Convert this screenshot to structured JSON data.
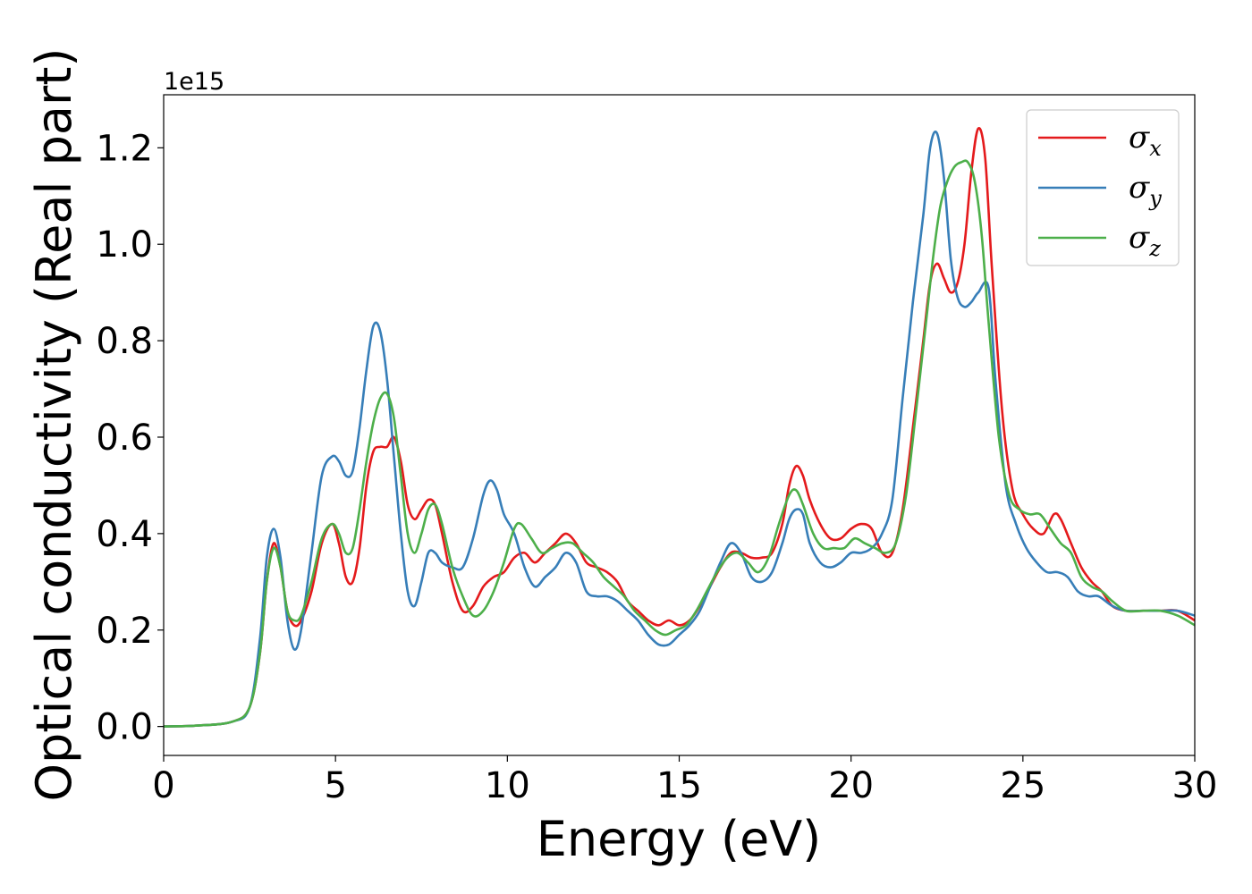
{
  "chart_data": {
    "type": "line",
    "xlabel": "Energy (eV)",
    "ylabel": "Optical conductivity (Real part)",
    "offset_label": "1e15",
    "xlim": [
      0,
      30
    ],
    "ylim": [
      -0.06,
      1.31
    ],
    "x_ticks": [
      0,
      5,
      10,
      15,
      20,
      25,
      30
    ],
    "x_tick_labels": [
      "0",
      "5",
      "10",
      "15",
      "20",
      "25",
      "30"
    ],
    "y_ticks": [
      0.0,
      0.2,
      0.4,
      0.6,
      0.8,
      1.0,
      1.2
    ],
    "y_tick_labels": [
      "0.0",
      "0.2",
      "0.4",
      "0.6",
      "0.8",
      "1.0",
      "1.2"
    ],
    "grid": false,
    "legend_position": "top-right",
    "series": [
      {
        "name": "σx",
        "symbol": "σ",
        "subscript": "x",
        "color": "#e41a1c",
        "points": [
          [
            0,
            0
          ],
          [
            1,
            0.002
          ],
          [
            2,
            0.01
          ],
          [
            2.5,
            0.04
          ],
          [
            2.8,
            0.15
          ],
          [
            3.0,
            0.3
          ],
          [
            3.2,
            0.38
          ],
          [
            3.4,
            0.33
          ],
          [
            3.6,
            0.24
          ],
          [
            3.8,
            0.21
          ],
          [
            4.0,
            0.22
          ],
          [
            4.3,
            0.28
          ],
          [
            4.6,
            0.38
          ],
          [
            4.9,
            0.42
          ],
          [
            5.1,
            0.38
          ],
          [
            5.3,
            0.31
          ],
          [
            5.5,
            0.3
          ],
          [
            5.7,
            0.37
          ],
          [
            5.9,
            0.5
          ],
          [
            6.1,
            0.57
          ],
          [
            6.3,
            0.58
          ],
          [
            6.5,
            0.58
          ],
          [
            6.7,
            0.6
          ],
          [
            6.9,
            0.55
          ],
          [
            7.1,
            0.46
          ],
          [
            7.3,
            0.43
          ],
          [
            7.5,
            0.45
          ],
          [
            7.7,
            0.47
          ],
          [
            7.9,
            0.46
          ],
          [
            8.1,
            0.4
          ],
          [
            8.4,
            0.3
          ],
          [
            8.7,
            0.24
          ],
          [
            9.0,
            0.25
          ],
          [
            9.3,
            0.29
          ],
          [
            9.6,
            0.31
          ],
          [
            9.9,
            0.32
          ],
          [
            10.2,
            0.35
          ],
          [
            10.5,
            0.36
          ],
          [
            10.8,
            0.34
          ],
          [
            11.1,
            0.36
          ],
          [
            11.4,
            0.38
          ],
          [
            11.7,
            0.4
          ],
          [
            12.0,
            0.38
          ],
          [
            12.3,
            0.34
          ],
          [
            12.6,
            0.33
          ],
          [
            12.9,
            0.32
          ],
          [
            13.2,
            0.3
          ],
          [
            13.5,
            0.26
          ],
          [
            13.8,
            0.24
          ],
          [
            14.1,
            0.22
          ],
          [
            14.4,
            0.21
          ],
          [
            14.7,
            0.22
          ],
          [
            15.0,
            0.21
          ],
          [
            15.3,
            0.22
          ],
          [
            15.6,
            0.25
          ],
          [
            15.9,
            0.29
          ],
          [
            16.2,
            0.33
          ],
          [
            16.5,
            0.36
          ],
          [
            16.8,
            0.36
          ],
          [
            17.1,
            0.35
          ],
          [
            17.4,
            0.35
          ],
          [
            17.7,
            0.36
          ],
          [
            18.0,
            0.42
          ],
          [
            18.2,
            0.5
          ],
          [
            18.4,
            0.54
          ],
          [
            18.6,
            0.52
          ],
          [
            18.8,
            0.47
          ],
          [
            19.1,
            0.42
          ],
          [
            19.4,
            0.39
          ],
          [
            19.7,
            0.39
          ],
          [
            20.0,
            0.41
          ],
          [
            20.3,
            0.42
          ],
          [
            20.6,
            0.41
          ],
          [
            20.9,
            0.36
          ],
          [
            21.2,
            0.36
          ],
          [
            21.5,
            0.45
          ],
          [
            21.8,
            0.62
          ],
          [
            22.1,
            0.8
          ],
          [
            22.3,
            0.92
          ],
          [
            22.5,
            0.96
          ],
          [
            22.7,
            0.93
          ],
          [
            22.9,
            0.9
          ],
          [
            23.1,
            0.92
          ],
          [
            23.3,
            1.0
          ],
          [
            23.5,
            1.15
          ],
          [
            23.7,
            1.24
          ],
          [
            23.9,
            1.18
          ],
          [
            24.1,
            0.95
          ],
          [
            24.4,
            0.65
          ],
          [
            24.7,
            0.49
          ],
          [
            25.0,
            0.44
          ],
          [
            25.3,
            0.41
          ],
          [
            25.6,
            0.4
          ],
          [
            25.9,
            0.44
          ],
          [
            26.1,
            0.43
          ],
          [
            26.4,
            0.38
          ],
          [
            26.7,
            0.33
          ],
          [
            27.0,
            0.3
          ],
          [
            27.3,
            0.28
          ],
          [
            27.6,
            0.25
          ],
          [
            28.0,
            0.24
          ],
          [
            28.5,
            0.24
          ],
          [
            29.0,
            0.24
          ],
          [
            29.5,
            0.24
          ],
          [
            30.0,
            0.22
          ]
        ]
      },
      {
        "name": "σy",
        "symbol": "σ",
        "subscript": "y",
        "color": "#377eb8",
        "points": [
          [
            0,
            0
          ],
          [
            1,
            0.002
          ],
          [
            2,
            0.01
          ],
          [
            2.5,
            0.04
          ],
          [
            2.8,
            0.18
          ],
          [
            3.0,
            0.35
          ],
          [
            3.2,
            0.41
          ],
          [
            3.4,
            0.35
          ],
          [
            3.6,
            0.22
          ],
          [
            3.8,
            0.16
          ],
          [
            4.0,
            0.2
          ],
          [
            4.3,
            0.36
          ],
          [
            4.6,
            0.52
          ],
          [
            4.9,
            0.56
          ],
          [
            5.1,
            0.55
          ],
          [
            5.3,
            0.52
          ],
          [
            5.5,
            0.53
          ],
          [
            5.7,
            0.62
          ],
          [
            5.9,
            0.74
          ],
          [
            6.1,
            0.83
          ],
          [
            6.3,
            0.82
          ],
          [
            6.5,
            0.72
          ],
          [
            6.7,
            0.56
          ],
          [
            6.9,
            0.4
          ],
          [
            7.1,
            0.28
          ],
          [
            7.3,
            0.25
          ],
          [
            7.5,
            0.3
          ],
          [
            7.7,
            0.36
          ],
          [
            7.9,
            0.36
          ],
          [
            8.1,
            0.34
          ],
          [
            8.4,
            0.33
          ],
          [
            8.7,
            0.33
          ],
          [
            9.0,
            0.39
          ],
          [
            9.3,
            0.48
          ],
          [
            9.5,
            0.51
          ],
          [
            9.7,
            0.49
          ],
          [
            9.9,
            0.44
          ],
          [
            10.2,
            0.4
          ],
          [
            10.5,
            0.33
          ],
          [
            10.8,
            0.29
          ],
          [
            11.1,
            0.31
          ],
          [
            11.4,
            0.33
          ],
          [
            11.7,
            0.36
          ],
          [
            12.0,
            0.34
          ],
          [
            12.3,
            0.28
          ],
          [
            12.6,
            0.27
          ],
          [
            12.9,
            0.27
          ],
          [
            13.2,
            0.26
          ],
          [
            13.5,
            0.24
          ],
          [
            13.8,
            0.22
          ],
          [
            14.1,
            0.19
          ],
          [
            14.4,
            0.17
          ],
          [
            14.7,
            0.17
          ],
          [
            15.0,
            0.19
          ],
          [
            15.3,
            0.21
          ],
          [
            15.6,
            0.24
          ],
          [
            15.9,
            0.29
          ],
          [
            16.2,
            0.34
          ],
          [
            16.5,
            0.38
          ],
          [
            16.8,
            0.36
          ],
          [
            17.1,
            0.31
          ],
          [
            17.4,
            0.3
          ],
          [
            17.7,
            0.32
          ],
          [
            18.0,
            0.38
          ],
          [
            18.2,
            0.43
          ],
          [
            18.4,
            0.45
          ],
          [
            18.6,
            0.44
          ],
          [
            18.8,
            0.38
          ],
          [
            19.1,
            0.34
          ],
          [
            19.4,
            0.33
          ],
          [
            19.7,
            0.34
          ],
          [
            20.0,
            0.36
          ],
          [
            20.3,
            0.36
          ],
          [
            20.6,
            0.37
          ],
          [
            20.9,
            0.4
          ],
          [
            21.2,
            0.47
          ],
          [
            21.5,
            0.68
          ],
          [
            21.8,
            0.88
          ],
          [
            22.1,
            1.06
          ],
          [
            22.3,
            1.2
          ],
          [
            22.5,
            1.23
          ],
          [
            22.7,
            1.14
          ],
          [
            22.9,
            0.97
          ],
          [
            23.1,
            0.89
          ],
          [
            23.3,
            0.87
          ],
          [
            23.5,
            0.88
          ],
          [
            23.7,
            0.9
          ],
          [
            24.0,
            0.91
          ],
          [
            24.2,
            0.72
          ],
          [
            24.5,
            0.5
          ],
          [
            24.8,
            0.42
          ],
          [
            25.1,
            0.37
          ],
          [
            25.4,
            0.34
          ],
          [
            25.7,
            0.32
          ],
          [
            26.0,
            0.32
          ],
          [
            26.3,
            0.31
          ],
          [
            26.6,
            0.28
          ],
          [
            26.9,
            0.27
          ],
          [
            27.2,
            0.27
          ],
          [
            27.6,
            0.25
          ],
          [
            28.0,
            0.24
          ],
          [
            28.5,
            0.24
          ],
          [
            29.0,
            0.24
          ],
          [
            29.5,
            0.24
          ],
          [
            30.0,
            0.23
          ]
        ]
      },
      {
        "name": "σz",
        "symbol": "σ",
        "subscript": "z",
        "color": "#4daf4a",
        "points": [
          [
            0,
            0
          ],
          [
            1,
            0.002
          ],
          [
            2,
            0.01
          ],
          [
            2.5,
            0.04
          ],
          [
            2.8,
            0.15
          ],
          [
            3.0,
            0.3
          ],
          [
            3.2,
            0.37
          ],
          [
            3.4,
            0.33
          ],
          [
            3.6,
            0.24
          ],
          [
            3.8,
            0.22
          ],
          [
            4.0,
            0.23
          ],
          [
            4.3,
            0.3
          ],
          [
            4.6,
            0.39
          ],
          [
            4.9,
            0.42
          ],
          [
            5.1,
            0.4
          ],
          [
            5.3,
            0.36
          ],
          [
            5.5,
            0.37
          ],
          [
            5.7,
            0.45
          ],
          [
            5.9,
            0.55
          ],
          [
            6.1,
            0.63
          ],
          [
            6.3,
            0.68
          ],
          [
            6.5,
            0.69
          ],
          [
            6.7,
            0.64
          ],
          [
            6.9,
            0.52
          ],
          [
            7.1,
            0.4
          ],
          [
            7.3,
            0.36
          ],
          [
            7.5,
            0.4
          ],
          [
            7.7,
            0.45
          ],
          [
            7.9,
            0.46
          ],
          [
            8.1,
            0.42
          ],
          [
            8.4,
            0.33
          ],
          [
            8.7,
            0.27
          ],
          [
            9.0,
            0.23
          ],
          [
            9.3,
            0.24
          ],
          [
            9.6,
            0.28
          ],
          [
            9.9,
            0.34
          ],
          [
            10.2,
            0.41
          ],
          [
            10.4,
            0.42
          ],
          [
            10.7,
            0.39
          ],
          [
            11.0,
            0.36
          ],
          [
            11.3,
            0.37
          ],
          [
            11.6,
            0.38
          ],
          [
            11.9,
            0.38
          ],
          [
            12.2,
            0.36
          ],
          [
            12.5,
            0.34
          ],
          [
            12.8,
            0.31
          ],
          [
            13.1,
            0.29
          ],
          [
            13.4,
            0.27
          ],
          [
            13.7,
            0.24
          ],
          [
            14.0,
            0.22
          ],
          [
            14.3,
            0.2
          ],
          [
            14.6,
            0.19
          ],
          [
            14.9,
            0.2
          ],
          [
            15.2,
            0.21
          ],
          [
            15.5,
            0.24
          ],
          [
            15.8,
            0.28
          ],
          [
            16.1,
            0.32
          ],
          [
            16.4,
            0.35
          ],
          [
            16.7,
            0.36
          ],
          [
            17.0,
            0.34
          ],
          [
            17.3,
            0.32
          ],
          [
            17.6,
            0.35
          ],
          [
            17.9,
            0.42
          ],
          [
            18.2,
            0.48
          ],
          [
            18.4,
            0.49
          ],
          [
            18.6,
            0.46
          ],
          [
            18.9,
            0.4
          ],
          [
            19.2,
            0.37
          ],
          [
            19.5,
            0.37
          ],
          [
            19.8,
            0.37
          ],
          [
            20.1,
            0.39
          ],
          [
            20.4,
            0.38
          ],
          [
            20.7,
            0.37
          ],
          [
            21.0,
            0.36
          ],
          [
            21.3,
            0.38
          ],
          [
            21.6,
            0.48
          ],
          [
            21.9,
            0.66
          ],
          [
            22.2,
            0.85
          ],
          [
            22.4,
            0.98
          ],
          [
            22.6,
            1.08
          ],
          [
            22.8,
            1.13
          ],
          [
            23.0,
            1.16
          ],
          [
            23.2,
            1.17
          ],
          [
            23.4,
            1.17
          ],
          [
            23.6,
            1.13
          ],
          [
            23.8,
            1.02
          ],
          [
            24.0,
            0.84
          ],
          [
            24.3,
            0.6
          ],
          [
            24.6,
            0.48
          ],
          [
            24.9,
            0.45
          ],
          [
            25.2,
            0.44
          ],
          [
            25.5,
            0.44
          ],
          [
            25.8,
            0.41
          ],
          [
            26.1,
            0.38
          ],
          [
            26.4,
            0.36
          ],
          [
            26.7,
            0.31
          ],
          [
            27.0,
            0.29
          ],
          [
            27.3,
            0.28
          ],
          [
            27.6,
            0.26
          ],
          [
            28.0,
            0.24
          ],
          [
            28.5,
            0.24
          ],
          [
            29.0,
            0.24
          ],
          [
            29.5,
            0.23
          ],
          [
            30.0,
            0.21
          ]
        ]
      }
    ]
  }
}
